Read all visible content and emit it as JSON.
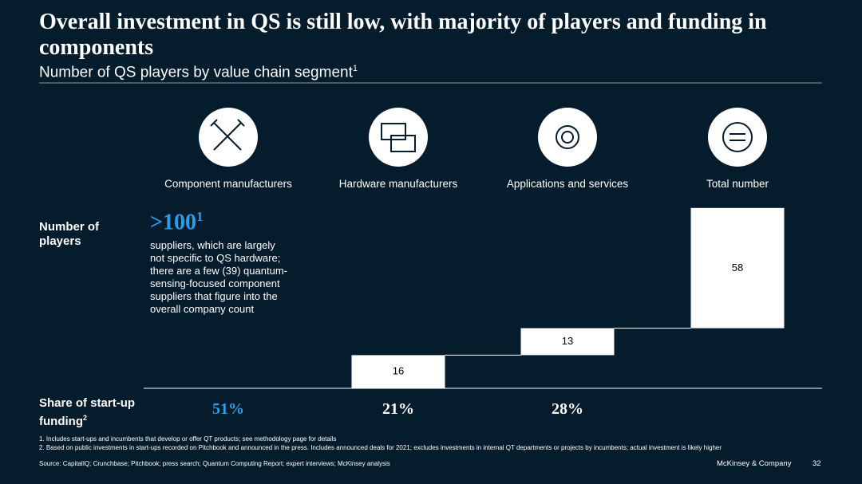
{
  "title": "Overall investment in QS is still low, with majority of players and funding in components",
  "subtitle": "Number of QS players by value chain segment",
  "subtitle_sup": "1",
  "row_labels": {
    "players": "Number of players",
    "funding": "Share of start-up funding",
    "funding_sup": "2"
  },
  "component_note": {
    "value": ">100",
    "sup": "1",
    "text": "suppliers, which are largely not specific to QS hardware; there are a few (39) quantum-sensing-focused component suppliers that figure into the overall company count"
  },
  "funding": {
    "values": [
      51,
      21,
      28
    ],
    "value_labels": [
      "51%",
      "21%",
      "28%"
    ]
  },
  "chart_data": {
    "type": "waterfall",
    "categories": [
      "Component manufacturers",
      "Hardware manufacturers",
      "Applications and services",
      "Total number"
    ],
    "values": [
      null,
      16,
      13,
      58
    ],
    "color": "#ffffff"
  },
  "footnotes": [
    "1. Includes start-ups and incumbents that develop or offer QT products; see methodology page for details",
    "2. Based on public investments in start-ups recorded on Pitchbook and announced in the press. Includes announced deals for 2021; excludes investments in internal QT departments or projects by incumbents; actual investment is likely higher"
  ],
  "source": "Source: CapitalIQ; Crunchbase; Pitchbook; press search; Quantum Computing Report; expert interviews; McKinsey analysis",
  "brand": "McKinsey & Company",
  "page": "32"
}
